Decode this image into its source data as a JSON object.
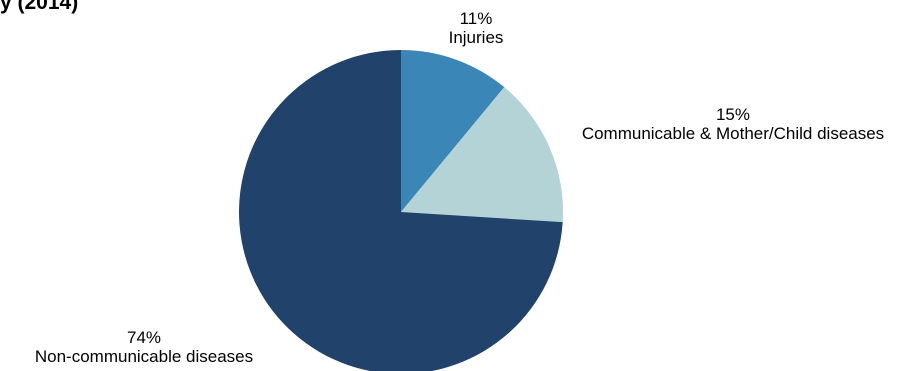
{
  "chart_data": {
    "type": "pie",
    "title_fragment": "y (2014)",
    "start_angle_deg": 0,
    "direction": "clockwise",
    "slices": [
      {
        "label": "Injuries",
        "value": 11,
        "value_label": "11%",
        "color": "#3a87b7"
      },
      {
        "label": "Communicable & Mother/Child diseases",
        "value": 15,
        "value_label": "15%",
        "color": "#b3d3d6"
      },
      {
        "label": "Non-communicable diseases",
        "value": 74,
        "value_label": "74%",
        "color": "#21426a"
      }
    ]
  }
}
